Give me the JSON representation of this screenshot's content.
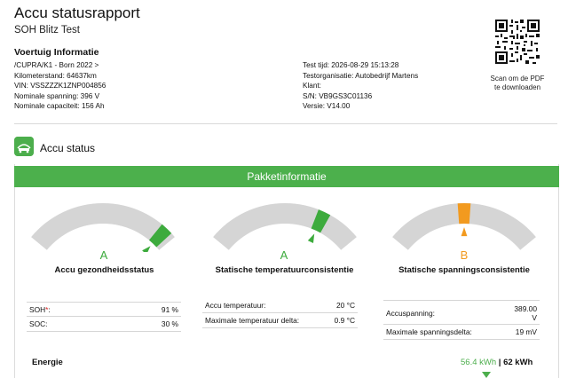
{
  "header": {
    "title": "Accu statusrapport",
    "subtitle": "SOH Blitz Test"
  },
  "vehicle": {
    "section_title": "Voertuig Informatie",
    "left": [
      "/CUPRA/K1 - Born 2022 >",
      "Kilometerstand: 64637km",
      "VIN: VSSZZZK1ZNP004856",
      "Nominale spanning: 396 V",
      "Nominale capaciteit: 156 Ah"
    ],
    "right": [
      "Test tijd: 2026-08-29 15:13:28",
      "Testorganisatie: Autobedrijf Martens",
      "Klant:",
      "S/N: VB9GS3C01136",
      "Versie: V14.00"
    ]
  },
  "qr": {
    "icon": "qr-code-icon",
    "caption_line1": "Scan om de PDF",
    "caption_line2": "te downloaden"
  },
  "accu": {
    "icon": "battery-icon",
    "title": "Accu status",
    "banner": "Pakketinformatie"
  },
  "gauges": [
    {
      "grade": "A",
      "label": "Accu gezondheidsstatus",
      "level": 0.93,
      "color": "#3dab3d"
    },
    {
      "grade": "A",
      "label": "Statische temperatuurconsistentie",
      "level": 0.75,
      "color": "#3dab3d"
    },
    {
      "grade": "B",
      "label": "Statische spanningsconsistentie",
      "level": 0.5,
      "color": "#f29a1f"
    }
  ],
  "tables": {
    "health": [
      {
        "label": "SOH",
        "mark": "*",
        "sep": ":",
        "value": "91 %"
      },
      {
        "label": "SOC:",
        "value": "30 %"
      }
    ],
    "temperature": [
      {
        "label": "Accu temperatuur:",
        "value": "20 °C"
      },
      {
        "label": "Maximale temperatuur delta:",
        "value": "0.9 °C"
      }
    ],
    "voltage": [
      {
        "label": "Accuspanning:",
        "value_line1": "389.00",
        "value_line2": "V"
      },
      {
        "label": "Maximale spanningsdelta:",
        "value": "19 mV"
      }
    ]
  },
  "energy": {
    "label": "Energie",
    "current": "56.4 kWh",
    "separator": "|",
    "total": "62 kWh",
    "fraction": 0.91
  }
}
